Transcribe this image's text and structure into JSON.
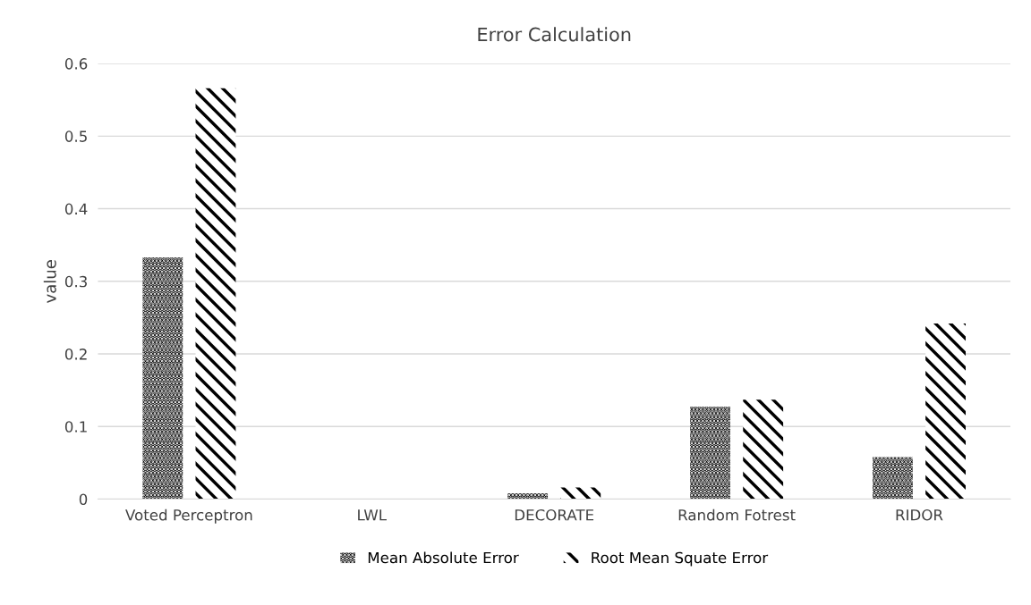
{
  "chart_data": {
    "type": "bar",
    "title": "Error Calculation",
    "ylabel": "value",
    "categories": [
      "Voted Perceptron",
      "LWL",
      "DECORATE",
      "Random Fotrest",
      "RIDOR"
    ],
    "series": [
      {
        "name": "Mean Absolute Error",
        "color": "#000000",
        "values": [
          0.333,
          0,
          0.008,
          0.127,
          0.058
        ]
      },
      {
        "name": "Root Mean Squate Error",
        "color": "#000000",
        "values": [
          0.566,
          0,
          0.016,
          0.137,
          0.242
        ]
      }
    ],
    "ylim": [
      0,
      0.6
    ],
    "yticks": [
      0,
      0.1,
      0.2,
      0.3,
      0.4,
      0.5,
      0.6
    ],
    "grid": "y",
    "legend": "bottom"
  }
}
